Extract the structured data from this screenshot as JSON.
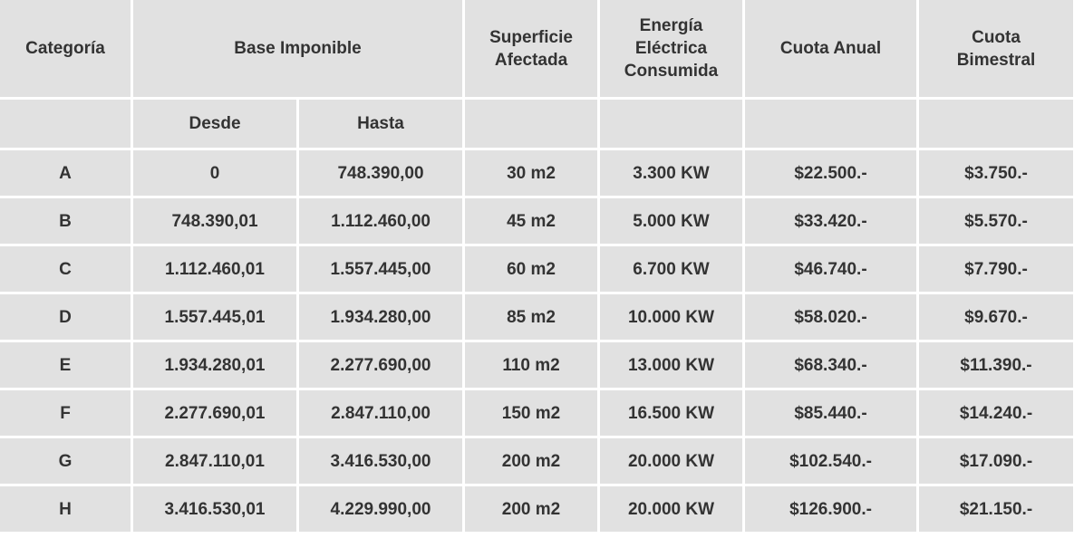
{
  "table": {
    "columns": [
      [
        "Categoría"
      ],
      [
        "Base Imponible"
      ],
      [
        "Superficie",
        "Afectada"
      ],
      [
        "Energía",
        "Eléctrica",
        "Consumida"
      ],
      [
        "Cuota Anual"
      ],
      [
        "Cuota",
        "Bimestral"
      ]
    ],
    "subheader": [
      "Desde",
      "Hasta"
    ],
    "rows": [
      [
        "A",
        "0",
        "748.390,00",
        "30 m2",
        "3.300 KW",
        "$22.500.-",
        "$3.750.-"
      ],
      [
        "B",
        "748.390,01",
        "1.112.460,00",
        "45 m2",
        "5.000 KW",
        "$33.420.-",
        "$5.570.-"
      ],
      [
        "C",
        "1.112.460,01",
        "1.557.445,00",
        "60 m2",
        "6.700 KW",
        "$46.740.-",
        "$7.790.-"
      ],
      [
        "D",
        "1.557.445,01",
        "1.934.280,00",
        "85 m2",
        "10.000 KW",
        "$58.020.-",
        "$9.670.-"
      ],
      [
        "E",
        "1.934.280,01",
        "2.277.690,00",
        "110 m2",
        "13.000 KW",
        "$68.340.-",
        "$11.390.-"
      ],
      [
        "F",
        "2.277.690,01",
        "2.847.110,00",
        "150 m2",
        "16.500 KW",
        "$85.440.-",
        "$14.240.-"
      ],
      [
        "G",
        "2.847.110,01",
        "3.416.530,00",
        "200 m2",
        "20.000 KW",
        "$102.540.-",
        "$17.090.-"
      ],
      [
        "H",
        "3.416.530,01",
        "4.229.990,00",
        "200 m2",
        "20.000 KW",
        "$126.900.-",
        "$21.150.-"
      ]
    ]
  }
}
